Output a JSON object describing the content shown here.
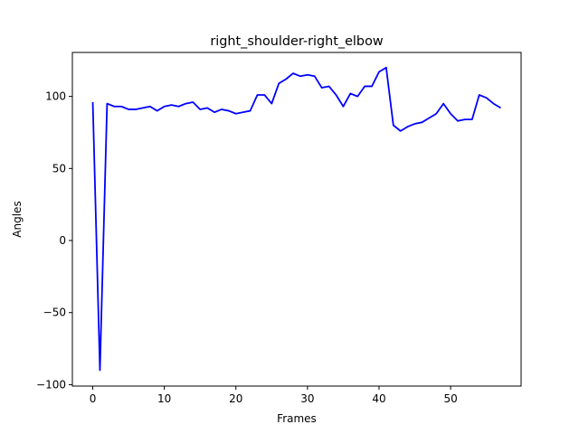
{
  "chart_data": {
    "type": "line",
    "title": "right_shoulder-right_elbow",
    "xlabel": "Frames",
    "ylabel": "Angles",
    "xlim": [
      -2.85,
      59.85
    ],
    "ylim": [
      -101,
      130.5
    ],
    "xticks": [
      0,
      10,
      20,
      30,
      40,
      50
    ],
    "yticks": [
      -100,
      -50,
      0,
      50,
      100
    ],
    "xtick_labels": [
      "0",
      "10",
      "20",
      "30",
      "40",
      "50"
    ],
    "ytick_labels": [
      "−100",
      "−50",
      "0",
      "50",
      "100"
    ],
    "grid": false,
    "legend": "none",
    "series": [
      {
        "color": "#0000ff",
        "x": [
          0,
          1,
          2,
          3,
          4,
          5,
          6,
          7,
          8,
          9,
          10,
          11,
          12,
          13,
          14,
          15,
          16,
          17,
          18,
          19,
          20,
          21,
          22,
          23,
          24,
          25,
          26,
          27,
          28,
          29,
          30,
          31,
          32,
          33,
          34,
          35,
          36,
          37,
          38,
          39,
          40,
          41,
          42,
          43,
          44,
          45,
          46,
          47,
          48,
          49,
          50,
          51,
          52,
          53,
          54,
          55,
          56,
          57
        ],
        "values": [
          96,
          -90,
          95,
          93,
          93,
          91,
          91,
          92,
          93,
          90,
          93,
          94,
          93,
          95,
          96,
          91,
          92,
          89,
          91,
          90,
          88,
          89,
          90,
          101,
          101,
          95,
          109,
          112,
          116,
          114,
          115,
          114,
          106,
          107,
          101,
          93,
          102,
          100,
          107,
          107,
          117,
          120,
          80,
          76,
          79,
          81,
          82,
          85,
          88,
          95,
          88,
          83,
          84,
          84,
          101,
          99,
          95,
          92
        ]
      }
    ]
  }
}
